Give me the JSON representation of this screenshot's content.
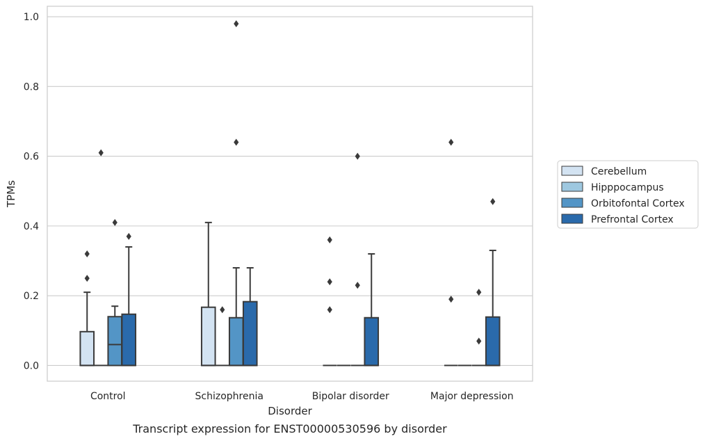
{
  "caption": "Transcript expression for ENST00000530596 by disorder",
  "chart_data": {
    "type": "box",
    "xlabel": "Disorder",
    "ylabel": "TPMs",
    "ylim": [
      -0.045,
      1.03
    ],
    "yticks": [
      0.0,
      0.2,
      0.4,
      0.6,
      0.8,
      1.0
    ],
    "ytick_labels": [
      "0.0",
      "0.2",
      "0.4",
      "0.6",
      "0.8",
      "1.0"
    ],
    "grid": "horizontal",
    "legend_position": "right",
    "categories": [
      "Control",
      "Schizophrenia",
      "Bipolar disorder",
      "Major depression"
    ],
    "series": [
      {
        "name": "Cerebellum",
        "color": "#d3e3f2",
        "boxes": [
          {
            "q1": 0,
            "median": 0,
            "q3": 0.097,
            "wlow": 0,
            "whigh": 0.21,
            "outliers": [
              0.25,
              0.32
            ]
          },
          {
            "q1": 0,
            "median": 0,
            "q3": 0.167,
            "wlow": 0,
            "whigh": 0.41,
            "outliers": []
          },
          {
            "q1": 0,
            "median": 0,
            "q3": 0,
            "wlow": 0,
            "whigh": 0,
            "outliers": [
              0.16,
              0.24,
              0.36
            ]
          },
          {
            "q1": 0,
            "median": 0,
            "q3": 0,
            "wlow": 0,
            "whigh": 0,
            "outliers": [
              0.19,
              0.64
            ]
          }
        ]
      },
      {
        "name": "Hipppocampus",
        "color": "#9ec8e0",
        "boxes": [
          {
            "q1": 0,
            "median": 0,
            "q3": 0,
            "wlow": 0,
            "whigh": 0,
            "outliers": [
              0.61
            ]
          },
          {
            "q1": 0,
            "median": 0,
            "q3": 0,
            "wlow": 0,
            "whigh": 0,
            "outliers": [
              0.16
            ]
          },
          {
            "q1": 0,
            "median": 0,
            "q3": 0,
            "wlow": 0,
            "whigh": 0,
            "outliers": []
          },
          {
            "q1": 0,
            "median": 0,
            "q3": 0,
            "wlow": 0,
            "whigh": 0,
            "outliers": []
          }
        ]
      },
      {
        "name": "Orbitofontal Cortex",
        "color": "#5395c6",
        "boxes": [
          {
            "q1": 0,
            "median": 0.06,
            "q3": 0.14,
            "wlow": 0,
            "whigh": 0.17,
            "outliers": [
              0.41
            ]
          },
          {
            "q1": 0,
            "median": 0,
            "q3": 0.137,
            "wlow": 0,
            "whigh": 0.28,
            "outliers": [
              0.64,
              0.98
            ]
          },
          {
            "q1": 0,
            "median": 0,
            "q3": 0,
            "wlow": 0,
            "whigh": 0,
            "outliers": [
              0.23,
              0.6
            ]
          },
          {
            "q1": 0,
            "median": 0,
            "q3": 0,
            "wlow": 0,
            "whigh": 0,
            "outliers": [
              0.07,
              0.21
            ]
          }
        ]
      },
      {
        "name": "Prefrontal Cortex",
        "color": "#2a6aab",
        "boxes": [
          {
            "q1": 0,
            "median": 0,
            "q3": 0.147,
            "wlow": 0,
            "whigh": 0.34,
            "outliers": [
              0.37
            ]
          },
          {
            "q1": 0,
            "median": 0,
            "q3": 0.183,
            "wlow": 0,
            "whigh": 0.28,
            "outliers": []
          },
          {
            "q1": 0,
            "median": 0,
            "q3": 0.137,
            "wlow": 0,
            "whigh": 0.32,
            "outliers": []
          },
          {
            "q1": 0,
            "median": 0,
            "q3": 0.139,
            "wlow": 0,
            "whigh": 0.33,
            "outliers": [
              0.47
            ]
          }
        ]
      }
    ]
  }
}
